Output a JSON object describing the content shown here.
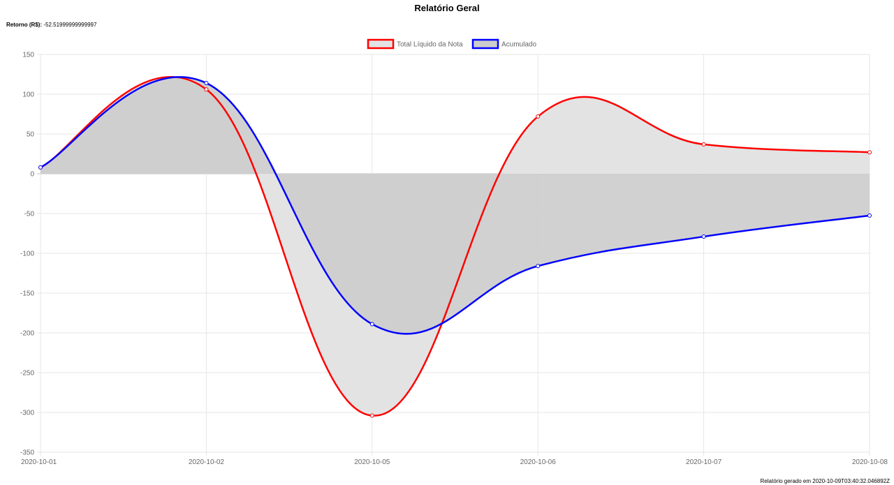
{
  "report": {
    "title": "Relatório Geral",
    "retorno_label": "Retorno (R$):",
    "retorno_value": "-52.51999999999997",
    "footer": "Relatório gerado em 2020-10-09T03:40:32.046892Z"
  },
  "chart_data": {
    "type": "line",
    "title": "",
    "xlabel": "",
    "ylabel": "",
    "categories": [
      "2020-10-01",
      "2020-10-02",
      "2020-10-05",
      "2020-10-06",
      "2020-10-07",
      "2020-10-08"
    ],
    "ylim": [
      -350,
      150
    ],
    "yticks": [
      150,
      100,
      50,
      0,
      -50,
      -100,
      -150,
      -200,
      -250,
      -300,
      -350
    ],
    "grid": true,
    "legend_position": "top-center",
    "fill": "origin",
    "series": [
      {
        "name": "Total Líquido da Nota",
        "color": "#ff0000",
        "fill_color": "#e3e3e3",
        "values": [
          8,
          106,
          -304,
          72,
          37,
          27
        ]
      },
      {
        "name": "Acumulado",
        "color": "#0000ff",
        "fill_color": "#cccccc",
        "values": [
          8,
          114,
          -189,
          -116,
          -79,
          -52.52
        ]
      }
    ]
  }
}
